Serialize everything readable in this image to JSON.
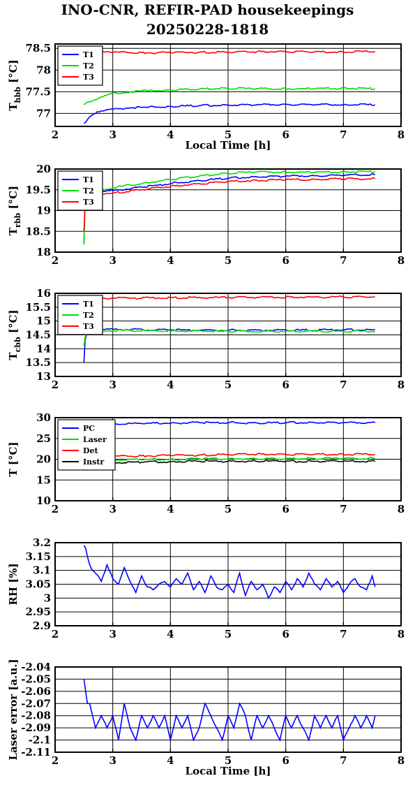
{
  "title": {
    "line1": "INO-CNR, REFIR-PAD housekeepings",
    "line2": "20250228-1818"
  },
  "colors": {
    "blue": "#0000ff",
    "green": "#00dd00",
    "red": "#ff0000",
    "black": "#000000",
    "grid": "#000000"
  },
  "chart_data": [
    {
      "type": "line",
      "ylabel_main": "T",
      "ylabel_sub": "hbb",
      "ylabel_unit": " [°C]",
      "xlabel": "Local Time [h]",
      "xlim": [
        2,
        8
      ],
      "ylim": [
        76.7,
        78.6
      ],
      "xticks": [
        2,
        3,
        4,
        5,
        6,
        7,
        8
      ],
      "yticks": [
        77,
        77.5,
        78,
        78.5
      ],
      "ytick_labels": [
        "77",
        "77.5",
        "78",
        "78.5"
      ],
      "legend": "top-left",
      "series": [
        {
          "name": "T1",
          "color": "#0000ff",
          "x": [
            2.5,
            2.6,
            2.7,
            2.8,
            3.0,
            3.3,
            3.6,
            4.0,
            4.5,
            5.0,
            5.5,
            6.0,
            6.5,
            7.0,
            7.55
          ],
          "y": [
            76.77,
            76.92,
            77.0,
            77.06,
            77.1,
            77.13,
            77.14,
            77.16,
            77.18,
            77.19,
            77.2,
            77.21,
            77.2,
            77.2,
            77.2
          ]
        },
        {
          "name": "T2",
          "color": "#00dd00",
          "x": [
            2.5,
            2.6,
            2.8,
            3.0,
            3.3,
            3.6,
            4.0,
            4.5,
            5.0,
            5.5,
            6.0,
            6.5,
            7.0,
            7.55
          ],
          "y": [
            77.2,
            77.27,
            77.38,
            77.46,
            77.5,
            77.52,
            77.54,
            77.56,
            77.58,
            77.57,
            77.57,
            77.57,
            77.58,
            77.57
          ]
        },
        {
          "name": "T3",
          "color": "#ff0000",
          "x": [
            2.5,
            3.0,
            3.5,
            4.0,
            4.5,
            5.0,
            5.5,
            6.0,
            6.5,
            7.0,
            7.55
          ],
          "y": [
            78.42,
            78.41,
            78.4,
            78.4,
            78.41,
            78.41,
            78.42,
            78.43,
            78.42,
            78.42,
            78.43
          ]
        }
      ]
    },
    {
      "type": "line",
      "ylabel_main": "T",
      "ylabel_sub": "rbb",
      "ylabel_unit": " [°C]",
      "xlabel": "",
      "xlim": [
        2,
        8
      ],
      "ylim": [
        18,
        20
      ],
      "xticks": [
        2,
        3,
        4,
        5,
        6,
        7,
        8
      ],
      "yticks": [
        18,
        18.5,
        19,
        19.5,
        20
      ],
      "ytick_labels": [
        "18",
        "18.5",
        "19",
        "19.5",
        "20"
      ],
      "legend": "top-left",
      "series": [
        {
          "name": "T1",
          "color": "#0000ff",
          "x": [
            2.5,
            2.52,
            2.55,
            2.7,
            3.0,
            3.5,
            4.0,
            4.5,
            5.0,
            5.5,
            6.0,
            6.5,
            7.0,
            7.55
          ],
          "y": [
            18.2,
            19.25,
            19.38,
            19.43,
            19.48,
            19.56,
            19.65,
            19.72,
            19.78,
            19.81,
            19.83,
            19.84,
            19.85,
            19.86
          ]
        },
        {
          "name": "T2",
          "color": "#00dd00",
          "x": [
            2.5,
            2.52,
            2.55,
            2.7,
            3.0,
            3.5,
            4.0,
            4.5,
            5.0,
            5.5,
            6.0,
            6.5,
            7.0,
            7.55
          ],
          "y": [
            18.18,
            19.3,
            19.42,
            19.47,
            19.55,
            19.65,
            19.75,
            19.83,
            19.9,
            19.93,
            19.93,
            19.92,
            19.93,
            19.94
          ]
        },
        {
          "name": "T3",
          "color": "#ff0000",
          "x": [
            2.5,
            2.52,
            2.55,
            2.7,
            3.0,
            3.5,
            4.0,
            4.5,
            5.0,
            5.5,
            6.0,
            6.5,
            7.0,
            7.55
          ],
          "y": [
            18.5,
            19.1,
            19.3,
            19.35,
            19.42,
            19.5,
            19.58,
            19.65,
            19.7,
            19.73,
            19.74,
            19.75,
            19.76,
            19.77
          ]
        }
      ]
    },
    {
      "type": "line",
      "ylabel_main": "T",
      "ylabel_sub": "cbb",
      "ylabel_unit": " [°C]",
      "xlabel": "",
      "xlim": [
        2,
        8
      ],
      "ylim": [
        13,
        16
      ],
      "xticks": [
        2,
        3,
        4,
        5,
        6,
        7,
        8
      ],
      "yticks": [
        13,
        13.5,
        14,
        14.5,
        15,
        15.5,
        16
      ],
      "ytick_labels": [
        "13",
        "13.5",
        "14",
        "14.5",
        "15",
        "15.5",
        "16"
      ],
      "legend": "top-left",
      "series": [
        {
          "name": "T1",
          "color": "#0000ff",
          "x": [
            2.5,
            2.52,
            2.56,
            2.7,
            3.0,
            4.0,
            5.0,
            6.0,
            7.0,
            7.55
          ],
          "y": [
            13.5,
            14.3,
            14.65,
            14.68,
            14.7,
            14.68,
            14.67,
            14.67,
            14.68,
            14.68
          ]
        },
        {
          "name": "T2",
          "color": "#00dd00",
          "x": [
            2.5,
            2.52,
            2.56,
            2.7,
            3.0,
            4.0,
            5.0,
            6.0,
            7.0,
            7.55
          ],
          "y": [
            14.1,
            14.4,
            14.62,
            14.65,
            14.66,
            14.64,
            14.63,
            14.63,
            14.63,
            14.63
          ]
        },
        {
          "name": "T3",
          "color": "#ff0000",
          "x": [
            2.5,
            2.56,
            2.7,
            3.0,
            4.0,
            5.0,
            6.0,
            7.0,
            7.55
          ],
          "y": [
            15.9,
            15.85,
            15.82,
            15.83,
            15.84,
            15.85,
            15.86,
            15.87,
            15.88
          ]
        }
      ]
    },
    {
      "type": "line",
      "ylabel_main": "T",
      "ylabel_sub": "",
      "ylabel_unit": " [°C]",
      "xlabel": "",
      "xlim": [
        2,
        8
      ],
      "ylim": [
        10,
        30
      ],
      "xticks": [
        2,
        3,
        4,
        5,
        6,
        7,
        8
      ],
      "yticks": [
        10,
        15,
        20,
        25,
        30
      ],
      "ytick_labels": [
        "10",
        "15",
        "20",
        "25",
        "30"
      ],
      "legend": "top-left",
      "series": [
        {
          "name": "PC",
          "color": "#0000ff",
          "x": [
            2.5,
            2.8,
            3.0,
            3.5,
            4.0,
            4.5,
            5.0,
            5.5,
            6.0,
            6.5,
            7.0,
            7.55
          ],
          "y": [
            28.2,
            28.4,
            28.5,
            28.6,
            28.7,
            28.8,
            28.8,
            28.7,
            28.8,
            28.8,
            28.8,
            28.8
          ]
        },
        {
          "name": "Laser",
          "color": "#00dd00",
          "x": [
            2.5,
            3.0,
            3.5,
            4.0,
            4.5,
            5.0,
            5.5,
            6.0,
            6.5,
            7.0,
            7.55
          ],
          "y": [
            19.6,
            19.8,
            19.9,
            20.0,
            20.1,
            20.1,
            20.1,
            20.1,
            20.2,
            20.2,
            20.2
          ]
        },
        {
          "name": "Det",
          "color": "#ff0000",
          "x": [
            2.5,
            3.0,
            3.5,
            4.0,
            4.5,
            5.0,
            5.5,
            6.0,
            6.5,
            7.0,
            7.55
          ],
          "y": [
            20.5,
            20.7,
            20.8,
            20.9,
            21.0,
            21.1,
            21.2,
            21.2,
            21.2,
            21.2,
            21.2
          ]
        },
        {
          "name": "Instr",
          "color": "#000000",
          "x": [
            2.5,
            3.0,
            3.5,
            4.0,
            4.5,
            5.0,
            5.5,
            6.0,
            6.5,
            7.0,
            7.55
          ],
          "y": [
            19.0,
            19.2,
            19.3,
            19.4,
            19.5,
            19.5,
            19.5,
            19.5,
            19.5,
            19.5,
            19.5
          ]
        }
      ]
    },
    {
      "type": "line",
      "ylabel_main": "RH [%]",
      "ylabel_sub": "",
      "ylabel_unit": "",
      "xlabel": "",
      "xlim": [
        2,
        8
      ],
      "ylim": [
        2.9,
        3.2
      ],
      "xticks": [
        2,
        3,
        4,
        5,
        6,
        7,
        8
      ],
      "yticks": [
        2.9,
        2.95,
        3,
        3.05,
        3.1,
        3.15,
        3.2
      ],
      "ytick_labels": [
        "2.9",
        "2.95",
        "3",
        "3.05",
        "3.1",
        "3.15",
        "3.2"
      ],
      "legend": "none",
      "series": [
        {
          "name": "",
          "color": "#0000ff",
          "x": [
            2.5,
            2.53,
            2.56,
            2.6,
            2.65,
            2.7,
            2.75,
            2.8,
            2.9,
            3.0,
            3.1,
            3.2,
            3.3,
            3.4,
            3.5,
            3.6,
            3.7,
            3.8,
            3.9,
            4.0,
            4.1,
            4.2,
            4.3,
            4.4,
            4.5,
            4.6,
            4.7,
            4.8,
            4.9,
            5.0,
            5.1,
            5.2,
            5.3,
            5.4,
            5.5,
            5.6,
            5.7,
            5.8,
            5.9,
            6.0,
            6.1,
            6.2,
            6.3,
            6.4,
            6.5,
            6.6,
            6.7,
            6.8,
            6.9,
            7.0,
            7.1,
            7.2,
            7.3,
            7.4,
            7.5,
            7.55
          ],
          "y": [
            3.19,
            3.18,
            3.15,
            3.12,
            3.1,
            3.09,
            3.08,
            3.06,
            3.12,
            3.07,
            3.05,
            3.11,
            3.06,
            3.02,
            3.08,
            3.04,
            3.03,
            3.05,
            3.06,
            3.04,
            3.07,
            3.05,
            3.09,
            3.03,
            3.06,
            3.02,
            3.08,
            3.04,
            3.03,
            3.05,
            3.02,
            3.09,
            3.01,
            3.06,
            3.03,
            3.05,
            3.0,
            3.04,
            3.02,
            3.06,
            3.03,
            3.07,
            3.04,
            3.09,
            3.05,
            3.03,
            3.07,
            3.04,
            3.06,
            3.02,
            3.05,
            3.07,
            3.04,
            3.03,
            3.08,
            3.04
          ]
        }
      ]
    },
    {
      "type": "line",
      "ylabel_main": "Laser error [a.u.]",
      "ylabel_sub": "",
      "ylabel_unit": "",
      "xlabel": "Local Time [h]",
      "xlim": [
        2,
        8
      ],
      "ylim": [
        -2.11,
        -2.04
      ],
      "xticks": [
        2,
        3,
        4,
        5,
        6,
        7,
        8
      ],
      "yticks": [
        -2.11,
        -2.1,
        -2.09,
        -2.08,
        -2.07,
        -2.06,
        -2.05,
        -2.04
      ],
      "ytick_labels": [
        "-2.11",
        "-2.1",
        "-2.09",
        "-2.08",
        "-2.07",
        "-2.06",
        "-2.05",
        "-2.04"
      ],
      "legend": "none",
      "series": [
        {
          "name": "",
          "color": "#0000ff",
          "x": [
            2.5,
            2.53,
            2.56,
            2.6,
            2.65,
            2.7,
            2.8,
            2.9,
            3.0,
            3.1,
            3.2,
            3.3,
            3.4,
            3.5,
            3.6,
            3.7,
            3.8,
            3.9,
            4.0,
            4.1,
            4.2,
            4.3,
            4.4,
            4.5,
            4.6,
            4.7,
            4.8,
            4.9,
            5.0,
            5.1,
            5.2,
            5.3,
            5.4,
            5.5,
            5.6,
            5.7,
            5.8,
            5.9,
            6.0,
            6.1,
            6.2,
            6.3,
            6.4,
            6.5,
            6.6,
            6.7,
            6.8,
            6.9,
            7.0,
            7.1,
            7.2,
            7.3,
            7.4,
            7.5,
            7.55
          ],
          "y": [
            -2.05,
            -2.06,
            -2.07,
            -2.07,
            -2.08,
            -2.09,
            -2.08,
            -2.09,
            -2.08,
            -2.1,
            -2.07,
            -2.09,
            -2.1,
            -2.08,
            -2.09,
            -2.08,
            -2.09,
            -2.08,
            -2.1,
            -2.08,
            -2.09,
            -2.08,
            -2.1,
            -2.09,
            -2.07,
            -2.08,
            -2.09,
            -2.1,
            -2.08,
            -2.09,
            -2.07,
            -2.08,
            -2.1,
            -2.08,
            -2.09,
            -2.08,
            -2.09,
            -2.1,
            -2.08,
            -2.09,
            -2.08,
            -2.09,
            -2.1,
            -2.08,
            -2.09,
            -2.08,
            -2.09,
            -2.08,
            -2.1,
            -2.09,
            -2.08,
            -2.09,
            -2.08,
            -2.09,
            -2.08
          ]
        }
      ]
    }
  ]
}
